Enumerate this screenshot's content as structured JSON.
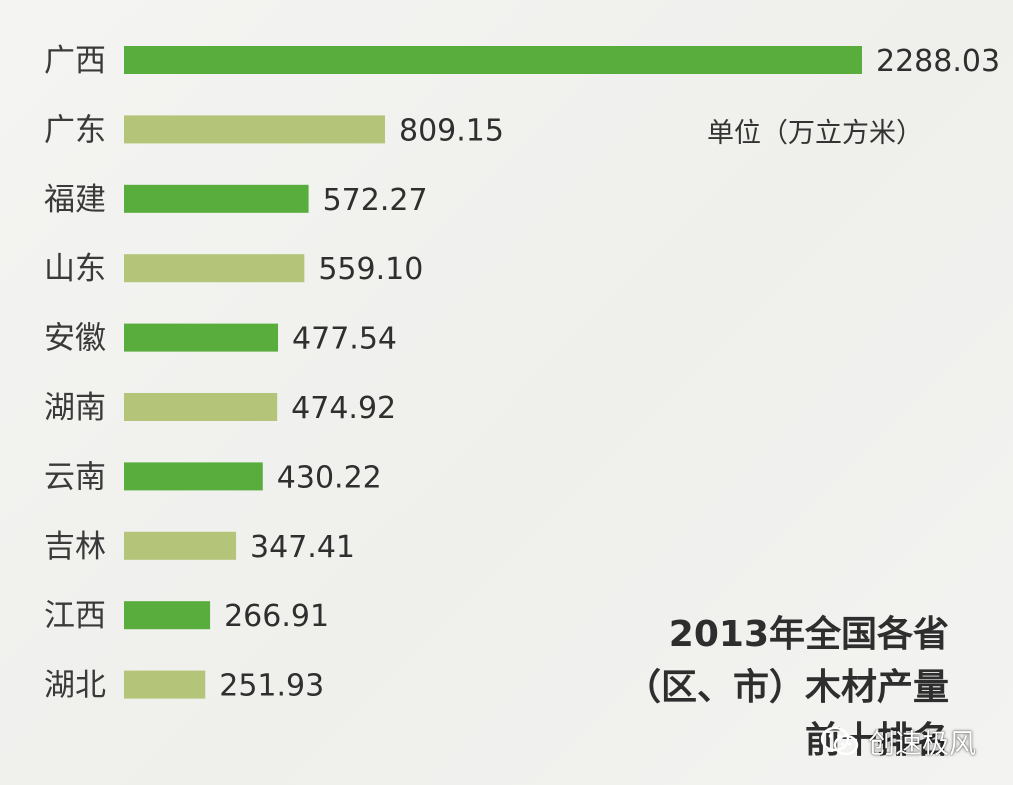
{
  "chart_data": {
    "type": "bar",
    "orientation": "horizontal",
    "categories": [
      "广西",
      "广东",
      "福建",
      "山东",
      "安徽",
      "湖南",
      "云南",
      "吉林",
      "江西",
      "湖北"
    ],
    "values": [
      2288.03,
      809.15,
      572.27,
      559.1,
      477.54,
      474.92,
      430.22,
      347.41,
      266.91,
      251.93
    ],
    "value_labels": [
      "2288.03",
      "809.15",
      "572.27",
      "559.10",
      "477.54",
      "474.92",
      "430.22",
      "347.41",
      "266.91",
      "251.93"
    ],
    "unit": "单位（万立方米）",
    "title_lines": [
      "2013年全国各省",
      "（区、市）木材产量",
      "前十排名"
    ],
    "xlim": [
      0,
      2288.03
    ],
    "grid": false,
    "bar_colors": [
      "#58ad3c",
      "#b4c479"
    ]
  },
  "watermark": {
    "text": "创速极风",
    "icon": "wechat-logo-icon"
  }
}
